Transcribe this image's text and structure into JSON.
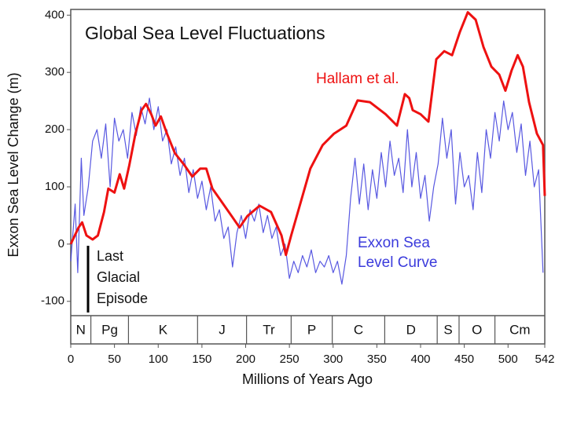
{
  "chart_data": {
    "type": "line",
    "title": "Global Sea Level Fluctuations",
    "x_label": "Millions of Years Ago",
    "y_label": "Exxon Sea Level Change (m)",
    "xlim": [
      0,
      542
    ],
    "xticks": [
      0,
      50,
      100,
      150,
      200,
      250,
      300,
      350,
      400,
      450,
      500,
      542
    ],
    "ylim": [
      -125,
      410
    ],
    "yticks": [
      -100,
      0,
      100,
      200,
      300,
      400
    ],
    "series": [
      {
        "name": "Exxon Sea Level Curve",
        "label_lines": [
          "Exxon Sea",
          "Level Curve"
        ],
        "color": "#3b3bdc",
        "x": [
          0,
          5,
          8,
          12,
          15,
          20,
          25,
          30,
          35,
          40,
          45,
          50,
          55,
          60,
          65,
          70,
          75,
          80,
          85,
          90,
          95,
          100,
          105,
          110,
          115,
          120,
          125,
          130,
          135,
          140,
          145,
          150,
          155,
          160,
          165,
          170,
          175,
          180,
          185,
          190,
          195,
          200,
          205,
          210,
          215,
          220,
          225,
          230,
          235,
          240,
          245,
          250,
          255,
          260,
          265,
          270,
          275,
          280,
          285,
          290,
          295,
          300,
          305,
          310,
          315,
          320,
          325,
          330,
          335,
          340,
          345,
          350,
          355,
          360,
          365,
          370,
          375,
          380,
          385,
          390,
          395,
          400,
          405,
          410,
          415,
          420,
          425,
          430,
          435,
          440,
          445,
          450,
          455,
          460,
          465,
          470,
          475,
          480,
          485,
          490,
          495,
          500,
          505,
          510,
          515,
          520,
          525,
          530,
          535,
          540
        ],
        "values": [
          -30,
          70,
          -50,
          150,
          50,
          100,
          180,
          200,
          150,
          210,
          100,
          220,
          180,
          200,
          150,
          230,
          190,
          240,
          210,
          255,
          200,
          240,
          180,
          200,
          140,
          170,
          120,
          150,
          90,
          130,
          80,
          110,
          60,
          100,
          40,
          60,
          10,
          30,
          -40,
          20,
          50,
          10,
          60,
          40,
          70,
          20,
          50,
          10,
          30,
          -20,
          0,
          -60,
          -30,
          -50,
          -20,
          -40,
          -10,
          -50,
          -30,
          -40,
          -20,
          -50,
          -30,
          -70,
          -20,
          80,
          150,
          70,
          140,
          60,
          130,
          80,
          160,
          100,
          180,
          120,
          150,
          90,
          200,
          100,
          160,
          80,
          120,
          40,
          100,
          140,
          220,
          150,
          200,
          70,
          160,
          100,
          120,
          60,
          160,
          90,
          200,
          150,
          230,
          180,
          250,
          200,
          230,
          160,
          210,
          120,
          180,
          100,
          130,
          -50
        ]
      },
      {
        "name": "Hallam et al.",
        "color": "#ee1111",
        "x": [
          0,
          9,
          13,
          18,
          25,
          31,
          38,
          43,
          50,
          56,
          61,
          67,
          74,
          81,
          86,
          92,
          97,
          103,
          110,
          119,
          130,
          139,
          148,
          155,
          162,
          173,
          184,
          193,
          202,
          216,
          229,
          241,
          246,
          252,
          261,
          274,
          288,
          301,
          315,
          328,
          342,
          360,
          373,
          382,
          387,
          391,
          400,
          409,
          418,
          427,
          436,
          445,
          454,
          463,
          472,
          481,
          490,
          497,
          504,
          511,
          517,
          524,
          533,
          540,
          542
        ],
        "values": [
          0,
          29,
          38,
          15,
          8,
          15,
          56,
          97,
          90,
          122,
          97,
          138,
          193,
          234,
          245,
          227,
          207,
          223,
          193,
          159,
          138,
          118,
          132,
          132,
          97,
          73,
          49,
          29,
          49,
          67,
          56,
          15,
          -19,
          15,
          63,
          132,
          173,
          193,
          207,
          251,
          248,
          227,
          207,
          262,
          255,
          234,
          227,
          214,
          323,
          337,
          330,
          371,
          405,
          392,
          344,
          310,
          296,
          268,
          303,
          330,
          310,
          248,
          193,
          173,
          84
        ]
      }
    ],
    "periods": [
      {
        "name": "N",
        "start": 0,
        "end": 23
      },
      {
        "name": "Pg",
        "start": 23,
        "end": 66
      },
      {
        "name": "K",
        "start": 66,
        "end": 145
      },
      {
        "name": "J",
        "start": 145,
        "end": 201
      },
      {
        "name": "Tr",
        "start": 201,
        "end": 252
      },
      {
        "name": "P",
        "start": 252,
        "end": 299
      },
      {
        "name": "C",
        "start": 299,
        "end": 359
      },
      {
        "name": "D",
        "start": 359,
        "end": 419
      },
      {
        "name": "S",
        "start": 419,
        "end": 444
      },
      {
        "name": "O",
        "start": 444,
        "end": 485
      },
      {
        "name": "Cm",
        "start": 485,
        "end": 542
      }
    ],
    "annotation": [
      "Last",
      "Glacial",
      "Episode"
    ]
  }
}
